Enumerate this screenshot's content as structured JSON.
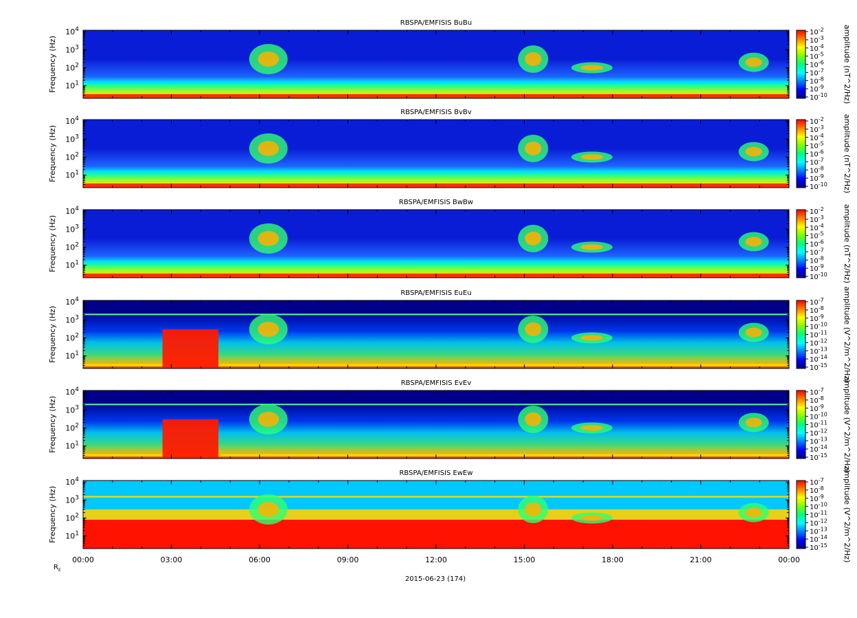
{
  "chart_data": {
    "type": "heatmap",
    "mission_title": "RBSPA/EMFISIS",
    "date_label": "2015-06-23 (174)",
    "x_extra_label": "R",
    "x_extra_label_sub": "E",
    "x": {
      "range": [
        "2015-06-23 00:00",
        "2015-06-24 00:00"
      ],
      "tick_labels": [
        "00:00",
        "03:00",
        "06:00",
        "09:00",
        "12:00",
        "15:00",
        "18:00",
        "21:00",
        "00:00"
      ]
    },
    "y": {
      "label": "Frequency (Hz)",
      "scale": "log",
      "range": [
        2,
        12000
      ],
      "tick_labels": [
        {
          "base": "10",
          "exp": "1",
          "value": 10
        },
        {
          "base": "10",
          "exp": "2",
          "value": 100
        },
        {
          "base": "10",
          "exp": "3",
          "value": 1000
        },
        {
          "base": "10",
          "exp": "4",
          "value": 10000
        }
      ]
    },
    "colormap": [
      "#00007f",
      "#0000ff",
      "#0080ff",
      "#00ffff",
      "#00ff80",
      "#80ff00",
      "#ffff00",
      "#ff8000",
      "#ff0000"
    ],
    "panels": [
      {
        "component": "BuBu",
        "cbar_label": "amplitude (nT^2/Hz)",
        "cbar_ticks": [
          "-2",
          "-3",
          "-4",
          "-5",
          "-6",
          "-7",
          "-8",
          "-9",
          "-10"
        ],
        "background": "#0a1dd6"
      },
      {
        "component": "BvBv",
        "cbar_label": "amplitude (nT^2/Hz)",
        "cbar_ticks": [
          "-2",
          "-3",
          "-4",
          "-5",
          "-6",
          "-7",
          "-8",
          "-9",
          "-10"
        ],
        "background": "#0a1dd6"
      },
      {
        "component": "BwBw",
        "cbar_label": "amplitude (nT^2/Hz)",
        "cbar_ticks": [
          "-2",
          "-3",
          "-4",
          "-5",
          "-6",
          "-7",
          "-8",
          "-9",
          "-10"
        ],
        "background": "#0a1dd6"
      },
      {
        "component": "EuEu",
        "cbar_label": "amplitude (V^2/m^2/Hz)",
        "cbar_ticks": [
          "-7",
          "-8",
          "-9",
          "-10",
          "-11",
          "-12",
          "-13",
          "-14",
          "-15"
        ],
        "background": "#00008a"
      },
      {
        "component": "EvEv",
        "cbar_label": "amplitude (V^2/m^2/Hz)",
        "cbar_ticks": [
          "-7",
          "-8",
          "-9",
          "-10",
          "-11",
          "-12",
          "-13",
          "-14",
          "-15"
        ],
        "background": "#00008a"
      },
      {
        "component": "EwEw",
        "cbar_label": "amplitude (V^2/m^2/Hz)",
        "cbar_ticks": [
          "-7",
          "-8",
          "-9",
          "-10",
          "-11",
          "-12",
          "-13",
          "-14",
          "-15"
        ],
        "background": "#00c8ff"
      }
    ]
  }
}
